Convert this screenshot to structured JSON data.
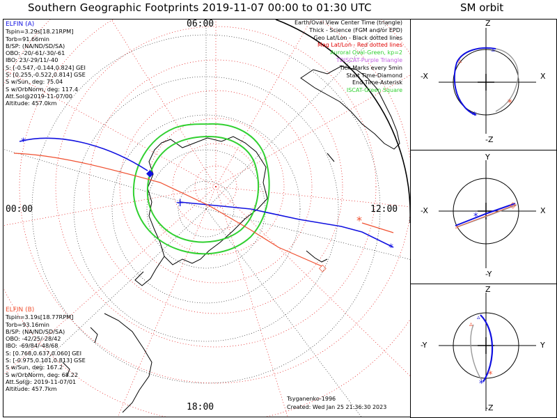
{
  "title": "Southern Geographic Footprints 2019-11-07 00:00 to 01:30 UTC",
  "orbit_title": "SM orbit",
  "clock": {
    "top": "06:00",
    "left": "00:00",
    "right": "12:00",
    "bottom": "18:00"
  },
  "elfin_a": {
    "name": "ELFIN (A)",
    "color": "#1010e0",
    "lines": [
      "Tspin=3.29s[18.21RPM]",
      "Torb=91.66min",
      "B/SP: (NA/ND/SD/SA)",
      "OBO: -20/-61/-30/-61",
      "IBO: 23/-29/11/-40",
      "S: [-0.547,-0.144,0.824] GEI",
      "S: [0.255,-0.522,0.814] GSE",
      "S w/Sun, deg: 75.04",
      "S w/OrbNorm, deg: 117.4",
      "Att.Sol@2019-11-07/00",
      "Altitude: 457.0km"
    ]
  },
  "elfin_b": {
    "name": "ELFIN (B)",
    "color": "#f05030",
    "lines": [
      "Tspin=3.19s[18.77RPM]",
      "Torb=93.16min",
      "B/SP: (NA/ND/SD/SA)",
      "OBO: -42/25/-28/42",
      "IBO: -69/84/-48/68",
      "S: [0.768,0.637,0.060] GEI",
      "S: [-0.975,0.101,0.813] GSE",
      "S w/Sun, deg: 167.2",
      "S w/OrbNorm, deg: 68.22",
      "Att.Sol@: 2019-11-07/01",
      "Altitude: 457.7km"
    ]
  },
  "legend": [
    {
      "text": "Earth/Oval View Center Time (triangle)",
      "color": "#000000"
    },
    {
      "text": "Thick - Science (FGM and/or EPD)",
      "color": "#000000"
    },
    {
      "text": "Geo Lat/Lon - Black dotted lines",
      "color": "#000000"
    },
    {
      "text": "Mag Lat/Lon - Red dotted lines",
      "color": "#e00000"
    },
    {
      "text": "Auroral Oval-Green, kp=2",
      "color": "#30d030"
    },
    {
      "text": "TDISCAT-Purple Triangle",
      "color": "#c060e0"
    },
    {
      "text": "Tick Marks every 5min",
      "color": "#000000"
    },
    {
      "text": "Start Time-Diamond",
      "color": "#000000"
    },
    {
      "text": "End Time-Asterisk",
      "color": "#000000"
    },
    {
      "text": "ISCAT-Green Square",
      "color": "#30d030"
    }
  ],
  "credit": {
    "model": "Tsyganenko-1996",
    "created": "Created: Wed Jan 25 21:36:30 2023"
  },
  "orbit_panels": [
    {
      "top": "Z",
      "bottom": "-Z",
      "left": "-X",
      "right": "X"
    },
    {
      "top": "Y",
      "bottom": "-Y",
      "left": "-X",
      "right": "X"
    },
    {
      "top": "Z",
      "bottom": "-Z",
      "left": "-Y",
      "right": "Y"
    }
  ],
  "colors": {
    "a": "#1010e0",
    "b": "#f05030",
    "oval": "#30d030",
    "mag": "#e00000",
    "geo": "#000000"
  }
}
